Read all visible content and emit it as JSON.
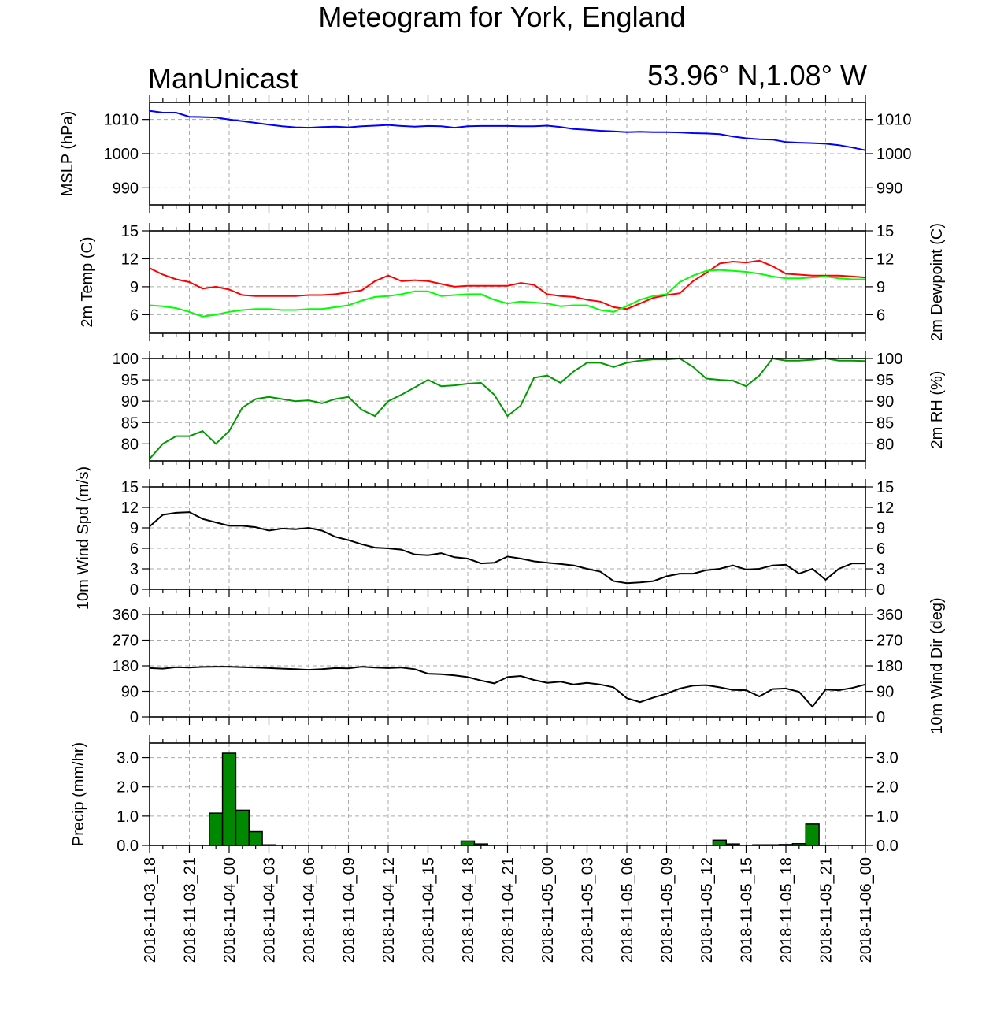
{
  "title": "Meteogram for York, England",
  "source": "ManUnicast",
  "location": "53.96° N,1.08° W",
  "x_tick_labels": [
    "2018-11-03_18",
    "2018-11-03_21",
    "2018-11-04_00",
    "2018-11-04_03",
    "2018-11-04_06",
    "2018-11-04_09",
    "2018-11-04_12",
    "2018-11-04_15",
    "2018-11-04_18",
    "2018-11-04_21",
    "2018-11-05_00",
    "2018-11-05_03",
    "2018-11-05_06",
    "2018-11-05_09",
    "2018-11-05_12",
    "2018-11-05_15",
    "2018-11-05_18",
    "2018-11-05_21",
    "2018-11-06_00"
  ],
  "chart_data": [
    {
      "type": "line",
      "x_unit_hours_from": "2018-11-03_18",
      "ylabel": "MSLP (hPa)",
      "ylim": [
        985,
        1015
      ],
      "yticks": [
        990,
        1000,
        1010
      ],
      "series": [
        {
          "color": "#0000ff",
          "x": [
            0,
            1,
            2,
            3,
            4,
            5,
            6,
            7,
            8,
            9,
            10,
            11,
            12,
            13,
            14,
            15,
            16,
            17,
            18,
            19,
            20,
            21,
            22,
            23,
            24,
            25,
            26,
            27,
            28,
            29,
            30,
            31,
            32,
            33,
            34,
            35,
            36,
            37,
            38,
            39,
            40,
            41,
            42,
            43,
            44,
            45,
            46,
            47,
            48,
            49,
            50,
            51,
            52,
            53,
            54
          ],
          "y": [
            1012.5,
            1012.0,
            1012.0,
            1010.8,
            1010.7,
            1010.6,
            1010.0,
            1009.5,
            1009.0,
            1008.5,
            1008.0,
            1007.7,
            1007.6,
            1007.8,
            1007.9,
            1007.7,
            1008.0,
            1008.2,
            1008.4,
            1008.1,
            1007.9,
            1008.1,
            1008.0,
            1007.6,
            1008.0,
            1008.1,
            1008.1,
            1008.1,
            1008.0,
            1008.0,
            1008.2,
            1007.8,
            1007.2,
            1007.0,
            1006.7,
            1006.5,
            1006.3,
            1006.4,
            1006.3,
            1006.3,
            1006.2,
            1006.0,
            1005.9,
            1005.7,
            1005.0,
            1004.5,
            1004.2,
            1004.1,
            1003.4,
            1003.2,
            1003.1,
            1002.9,
            1002.5,
            1001.8,
            1001.0
          ]
        }
      ]
    },
    {
      "type": "line",
      "x_unit_hours_from": "2018-11-03_18",
      "ylabel": "2m Temp (C)",
      "ylabel_right": "2m Dewpoint (C)",
      "ylim": [
        4,
        15
      ],
      "yticks": [
        6,
        9,
        12,
        15
      ],
      "series": [
        {
          "color": "#ff0000",
          "x": [
            0,
            1,
            2,
            3,
            4,
            5,
            6,
            7,
            8,
            9,
            10,
            11,
            12,
            13,
            14,
            15,
            16,
            17,
            18,
            19,
            20,
            21,
            22,
            23,
            24,
            25,
            26,
            27,
            28,
            29,
            30,
            31,
            32,
            33,
            34,
            35,
            36,
            37,
            38,
            39,
            40,
            41,
            42,
            43,
            44,
            45,
            46,
            47,
            48,
            49,
            50,
            51,
            52,
            53,
            54
          ],
          "y": [
            11.0,
            10.3,
            9.8,
            9.5,
            8.8,
            9.0,
            8.7,
            8.1,
            8.0,
            8.0,
            8.0,
            8.0,
            8.1,
            8.1,
            8.2,
            8.4,
            8.6,
            9.6,
            10.2,
            9.6,
            9.7,
            9.6,
            9.3,
            9.0,
            9.1,
            9.1,
            9.1,
            9.1,
            9.4,
            9.2,
            8.2,
            8.0,
            7.9,
            7.6,
            7.4,
            6.8,
            6.6,
            7.2,
            7.8,
            8.1,
            8.3,
            9.6,
            10.5,
            11.5,
            11.7,
            11.6,
            11.8,
            11.2,
            10.4,
            10.3,
            10.2,
            10.2,
            10.2,
            10.1,
            10.0
          ]
        },
        {
          "color": "#00ff00",
          "x": [
            0,
            1,
            2,
            3,
            4,
            5,
            6,
            7,
            8,
            9,
            10,
            11,
            12,
            13,
            14,
            15,
            16,
            17,
            18,
            19,
            20,
            21,
            22,
            23,
            24,
            25,
            26,
            27,
            28,
            29,
            30,
            31,
            32,
            33,
            34,
            35,
            36,
            37,
            38,
            39,
            40,
            41,
            42,
            43,
            44,
            45,
            46,
            47,
            48,
            49,
            50,
            51,
            52,
            53,
            54
          ],
          "y": [
            7.0,
            6.9,
            6.7,
            6.3,
            5.8,
            6.0,
            6.3,
            6.5,
            6.6,
            6.6,
            6.5,
            6.5,
            6.6,
            6.6,
            6.8,
            7.0,
            7.5,
            7.9,
            8.0,
            8.2,
            8.5,
            8.5,
            8.0,
            8.1,
            8.2,
            8.2,
            7.6,
            7.2,
            7.4,
            7.3,
            7.2,
            6.9,
            7.0,
            7.0,
            6.5,
            6.3,
            6.9,
            7.6,
            8.0,
            8.2,
            9.5,
            10.2,
            10.7,
            10.8,
            10.7,
            10.6,
            10.4,
            10.1,
            9.9,
            9.9,
            10.0,
            10.1,
            9.9,
            9.8,
            9.8
          ]
        }
      ]
    },
    {
      "type": "line",
      "x_unit_hours_from": "2018-11-03_18",
      "ylabel_right": "2m RH (%)",
      "ylim": [
        76,
        100
      ],
      "yticks": [
        80,
        85,
        90,
        95,
        100
      ],
      "series": [
        {
          "color": "#009900",
          "x": [
            0,
            1,
            2,
            3,
            4,
            5,
            6,
            7,
            8,
            9,
            10,
            11,
            12,
            13,
            14,
            15,
            16,
            17,
            18,
            19,
            20,
            21,
            22,
            23,
            24,
            25,
            26,
            27,
            28,
            29,
            30,
            31,
            32,
            33,
            34,
            35,
            36,
            37,
            38,
            39,
            40,
            41,
            42,
            43,
            44,
            45,
            46,
            47,
            48,
            49,
            50,
            51,
            52,
            53,
            54
          ],
          "y": [
            76.5,
            80.0,
            81.8,
            81.8,
            83.0,
            80.0,
            83.0,
            88.5,
            90.5,
            91.0,
            90.5,
            90.0,
            90.2,
            89.5,
            90.5,
            91.0,
            88.0,
            86.5,
            90.0,
            91.5,
            93.2,
            95.0,
            93.5,
            93.7,
            94.1,
            94.3,
            91.5,
            86.5,
            89.0,
            95.5,
            96.0,
            94.3,
            97.0,
            99.0,
            99.0,
            98.0,
            99.0,
            99.5,
            99.8,
            99.8,
            100.0,
            98.0,
            95.3,
            95.0,
            94.8,
            93.5,
            96.0,
            100.0,
            99.5,
            99.5,
            99.7,
            100.0,
            99.5,
            99.5,
            99.4
          ]
        }
      ]
    },
    {
      "type": "line",
      "x_unit_hours_from": "2018-11-03_18",
      "ylabel": "10m Wind Spd (m/s)",
      "ylim": [
        0,
        15
      ],
      "yticks": [
        0,
        3,
        6,
        9,
        12,
        15
      ],
      "series": [
        {
          "color": "#000000",
          "x": [
            0,
            1,
            2,
            3,
            4,
            5,
            6,
            7,
            8,
            9,
            10,
            11,
            12,
            13,
            14,
            15,
            16,
            17,
            18,
            19,
            20,
            21,
            22,
            23,
            24,
            25,
            26,
            27,
            28,
            29,
            30,
            31,
            32,
            33,
            34,
            35,
            36,
            37,
            38,
            39,
            40,
            41,
            42,
            43,
            44,
            45,
            46,
            47,
            48,
            49,
            50,
            51,
            52,
            53,
            54
          ],
          "y": [
            9.2,
            10.9,
            11.2,
            11.3,
            10.3,
            9.8,
            9.3,
            9.3,
            9.1,
            8.6,
            8.9,
            8.8,
            9.0,
            8.6,
            7.7,
            7.2,
            6.6,
            6.1,
            6.0,
            5.8,
            5.1,
            5.0,
            5.3,
            4.7,
            4.5,
            3.8,
            3.9,
            4.8,
            4.5,
            4.1,
            3.9,
            3.7,
            3.5,
            3.0,
            2.6,
            1.2,
            0.9,
            1.0,
            1.2,
            1.9,
            2.3,
            2.3,
            2.8,
            3.0,
            3.5,
            2.9,
            3.0,
            3.5,
            3.6,
            2.3,
            3.0,
            1.4,
            3.0,
            3.8,
            3.8
          ]
        }
      ]
    },
    {
      "type": "line",
      "x_unit_hours_from": "2018-11-03_18",
      "ylabel_right": "10m Wind Dir (deg)",
      "ylim": [
        0,
        360
      ],
      "yticks": [
        0,
        90,
        180,
        270,
        360
      ],
      "series": [
        {
          "color": "#000000",
          "x": [
            0,
            1,
            2,
            3,
            4,
            5,
            6,
            7,
            8,
            9,
            10,
            11,
            12,
            13,
            14,
            15,
            16,
            17,
            18,
            19,
            20,
            21,
            22,
            23,
            24,
            25,
            26,
            27,
            28,
            29,
            30,
            31,
            32,
            33,
            34,
            35,
            36,
            37,
            38,
            39,
            40,
            41,
            42,
            43,
            44,
            45,
            46,
            47,
            48,
            49,
            50,
            51,
            52,
            53,
            54
          ],
          "y": [
            172,
            170,
            175,
            174,
            176,
            177,
            177,
            175,
            174,
            172,
            170,
            168,
            166,
            168,
            172,
            171,
            177,
            174,
            172,
            174,
            168,
            152,
            150,
            146,
            140,
            128,
            118,
            140,
            144,
            130,
            120,
            124,
            114,
            120,
            114,
            104,
            66,
            52,
            68,
            82,
            100,
            110,
            112,
            104,
            95,
            94,
            72,
            98,
            100,
            88,
            36,
            96,
            94,
            102,
            114
          ]
        }
      ]
    },
    {
      "type": "bar",
      "x_unit_hours_from": "2018-11-03_18",
      "ylabel": "Precip (mm/hr)",
      "ylim": [
        0,
        3.5
      ],
      "yticks": [
        0.0,
        1.0,
        2.0,
        3.0
      ],
      "series": [
        {
          "color": "#008800",
          "x": [
            5,
            6,
            7,
            8,
            9,
            24,
            25,
            43,
            44,
            46,
            47,
            48,
            49,
            50
          ],
          "y": [
            1.1,
            3.15,
            1.2,
            0.47,
            0.02,
            0.15,
            0.05,
            0.18,
            0.05,
            0.02,
            0.02,
            0.03,
            0.06,
            0.73
          ]
        }
      ]
    }
  ]
}
